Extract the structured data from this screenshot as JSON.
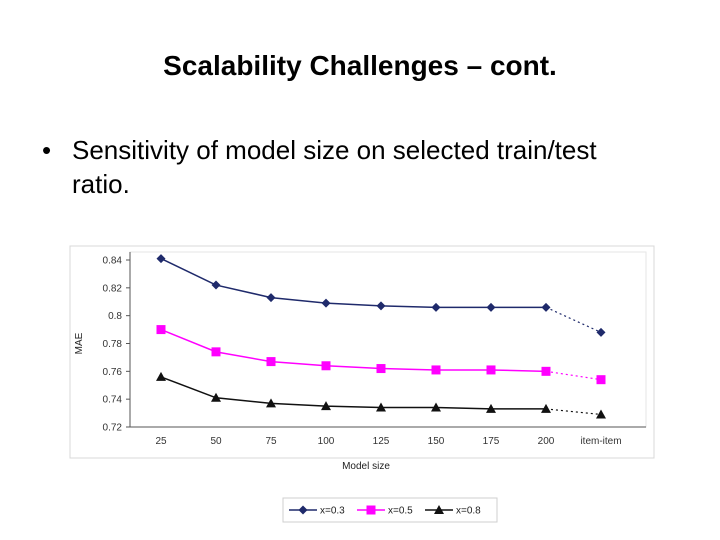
{
  "slide": {
    "title": "Scalability Challenges – cont.",
    "bullet_symbol": "•",
    "bullets": [
      "Sensitivity of model size on selected train/test ratio."
    ]
  },
  "chart_data": {
    "type": "line",
    "categories": [
      "25",
      "50",
      "75",
      "100",
      "125",
      "150",
      "175",
      "200",
      "item-item"
    ],
    "xlabel": "Model size",
    "ylabel": "MAE",
    "ylim": [
      0.72,
      0.84
    ],
    "yticks": [
      0.72,
      0.74,
      0.76,
      0.78,
      0.8,
      0.82,
      0.84
    ],
    "yticklabels": [
      "0.72",
      "0.74",
      "0.76",
      "0.78",
      "0.8",
      "0.82",
      "0.84"
    ],
    "grid": false,
    "legend_position": "bottom",
    "series": [
      {
        "name": "x=0.3",
        "color": "#1f2a6b",
        "marker": "diamond",
        "values": [
          0.841,
          0.822,
          0.813,
          0.809,
          0.807,
          0.806,
          0.806,
          0.806,
          0.788
        ]
      },
      {
        "name": "x=0.5",
        "color": "#ff00ff",
        "marker": "square",
        "values": [
          0.79,
          0.774,
          0.767,
          0.764,
          0.762,
          0.761,
          0.761,
          0.76,
          0.754
        ]
      },
      {
        "name": "x=0.8",
        "color": "#111111",
        "marker": "triangle",
        "values": [
          0.756,
          0.741,
          0.737,
          0.735,
          0.734,
          0.734,
          0.733,
          0.733,
          0.729
        ]
      }
    ]
  }
}
